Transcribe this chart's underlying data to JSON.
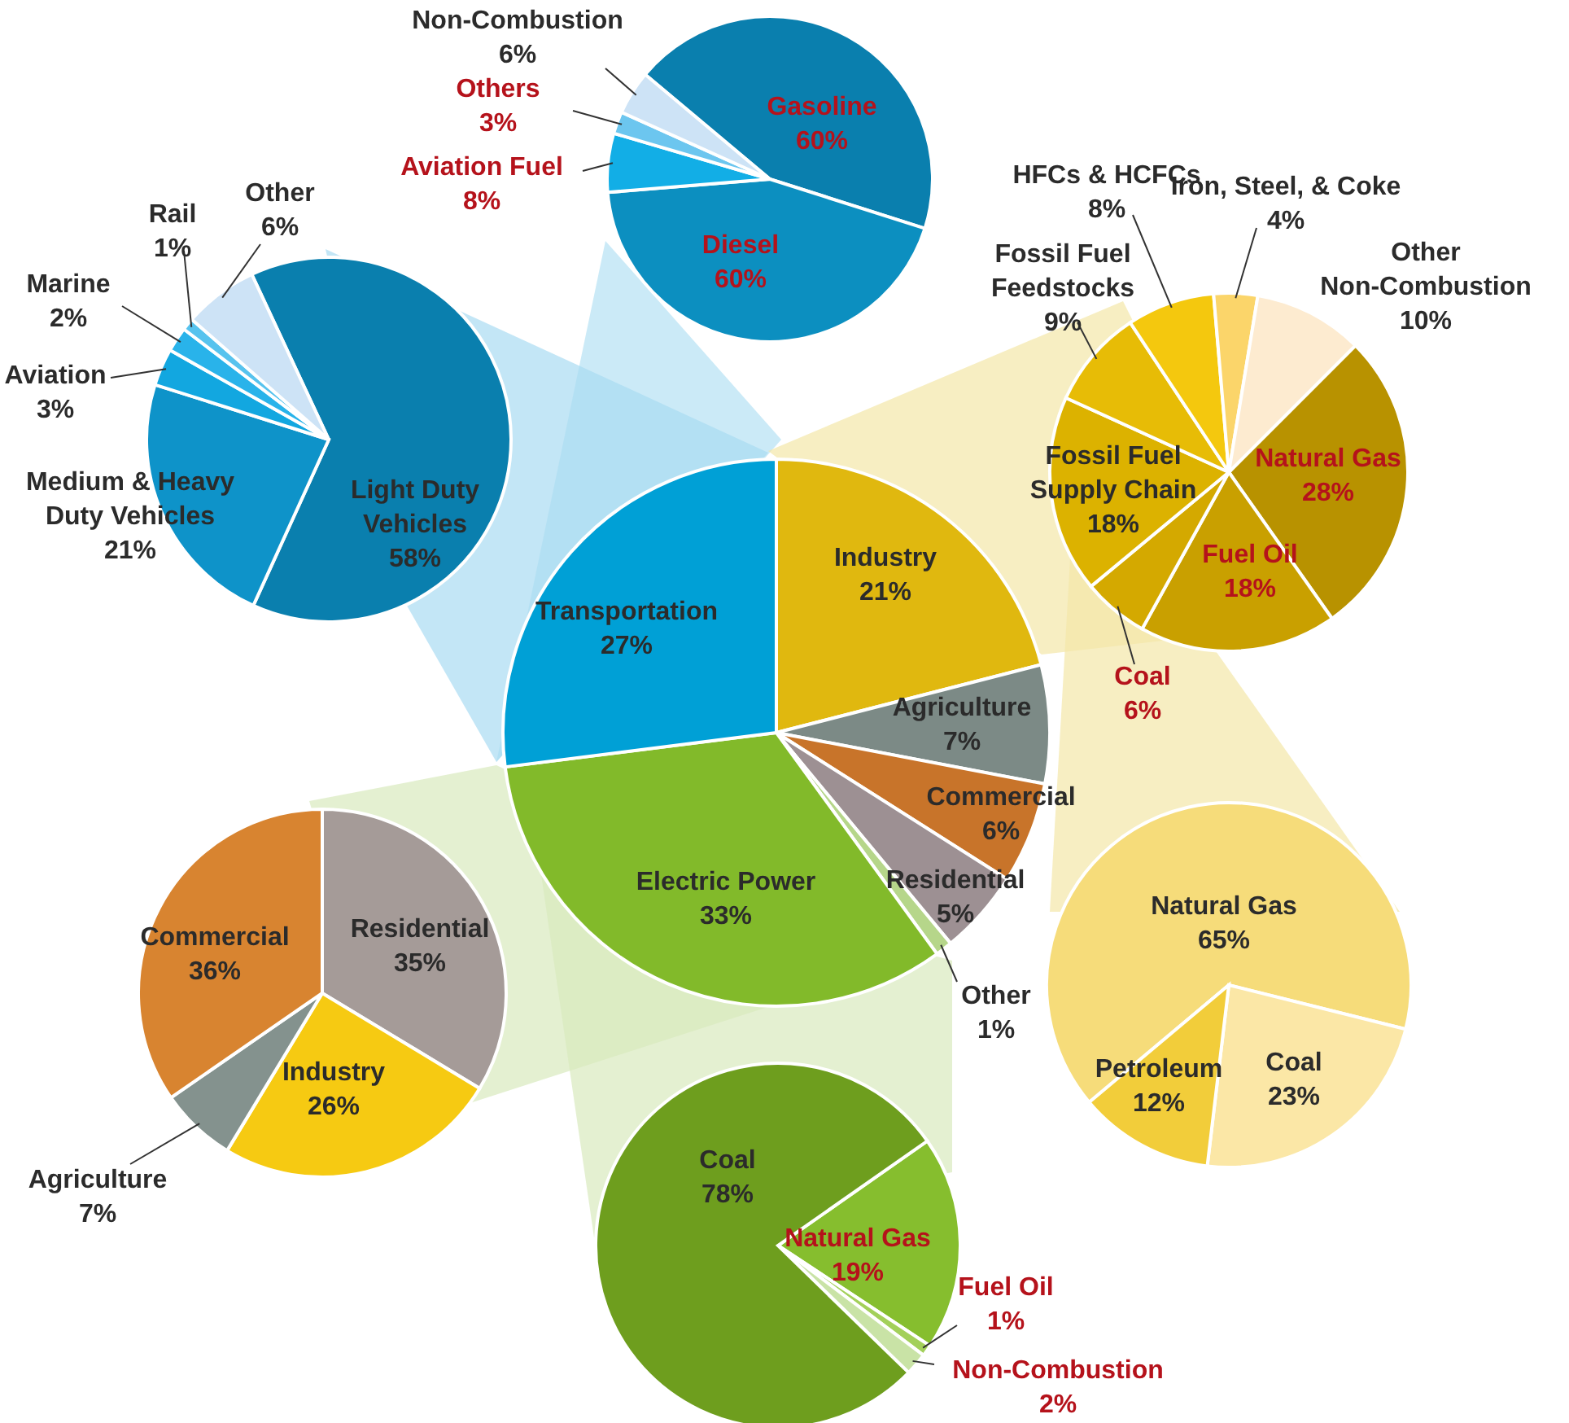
{
  "chart_data": [
    {
      "type": "pie",
      "categories": [
        "Industry",
        "Agriculture",
        "Commercial",
        "Residential",
        "Other",
        "Electric Power",
        "Transportation"
      ],
      "values": [
        21,
        7,
        6,
        5,
        1,
        33,
        27
      ],
      "value_labels": [
        "21%",
        "7%",
        "6%",
        "5%",
        "1%",
        "33%",
        "27%"
      ],
      "colors": [
        "#e0b80f",
        "#7c8a86",
        "#c8742a",
        "#9d9093",
        "#b6d68a",
        "#82ba2a",
        "#00a0d6"
      ]
    },
    {
      "type": "pie",
      "categories": [
        "Light Duty Vehicles",
        "Medium & Heavy Duty Vehicles",
        "Aviation",
        "Marine",
        "Rail",
        "Other"
      ],
      "values": [
        58,
        21,
        3,
        2,
        1,
        6
      ],
      "value_labels": [
        "58%",
        "21%",
        "3%",
        "2%",
        "1%",
        "6%"
      ],
      "colors": [
        "#0a7fae",
        "#0e93c9",
        "#12a7e0",
        "#29b3ea",
        "#57c3ee",
        "#cde3f6"
      ]
    },
    {
      "type": "pie",
      "categories": [
        "Gasoline",
        "Diesel",
        "Aviation Fuel",
        "Others",
        "Non-Combustion"
      ],
      "values": [
        60,
        60,
        8,
        3,
        6
      ],
      "value_labels": [
        "60%",
        "60%",
        "8%",
        "3%",
        "6%"
      ],
      "colors": [
        "#0a7fae",
        "#0c8fc0",
        "#12aee6",
        "#6cc6ef",
        "#cde3f6"
      ]
    },
    {
      "type": "pie",
      "categories": [
        "Natural Gas",
        "Fuel Oil",
        "Coal",
        "Fossil Fuel Supply Chain",
        "Fossil Fuel Feedstocks",
        "HFCs & HCFCs",
        "Iron, Steel, & Coke",
        "Other Non-Combustion"
      ],
      "values": [
        28,
        18,
        6,
        18,
        9,
        8,
        4,
        10
      ],
      "value_labels": [
        "28%",
        "18%",
        "6%",
        "18%",
        "9%",
        "8%",
        "4%",
        "10%"
      ],
      "colors": [
        "#b89200",
        "#c9a000",
        "#d4a900",
        "#dcb200",
        "#e7bc06",
        "#f4c80e",
        "#fbd56a",
        "#fdebd0"
      ]
    },
    {
      "type": "pie",
      "categories": [
        "Natural Gas",
        "Coal",
        "Petroleum"
      ],
      "values": [
        65,
        23,
        12
      ],
      "value_labels": [
        "65%",
        "23%",
        "12%"
      ],
      "colors": [
        "#f6dc7a",
        "#fbe7a6",
        "#f2cd3a"
      ]
    },
    {
      "type": "pie",
      "categories": [
        "Residential",
        "Industry",
        "Agriculture",
        "Commercial"
      ],
      "values": [
        35,
        26,
        7,
        36
      ],
      "value_labels": [
        "35%",
        "26%",
        "7%",
        "36%"
      ],
      "colors": [
        "#a59b98",
        "#f6ca12",
        "#84928e",
        "#d88430"
      ]
    },
    {
      "type": "pie",
      "categories": [
        "Natural Gas",
        "Fuel Oil",
        "Non-Combustion",
        "Coal"
      ],
      "values": [
        19,
        1,
        2,
        78
      ],
      "value_labels": [
        "19%",
        "1%",
        "2%",
        "78%"
      ],
      "colors": [
        "#86be2e",
        "#a3d05a",
        "#c9e3a6",
        "#6e9e1e"
      ]
    }
  ]
}
